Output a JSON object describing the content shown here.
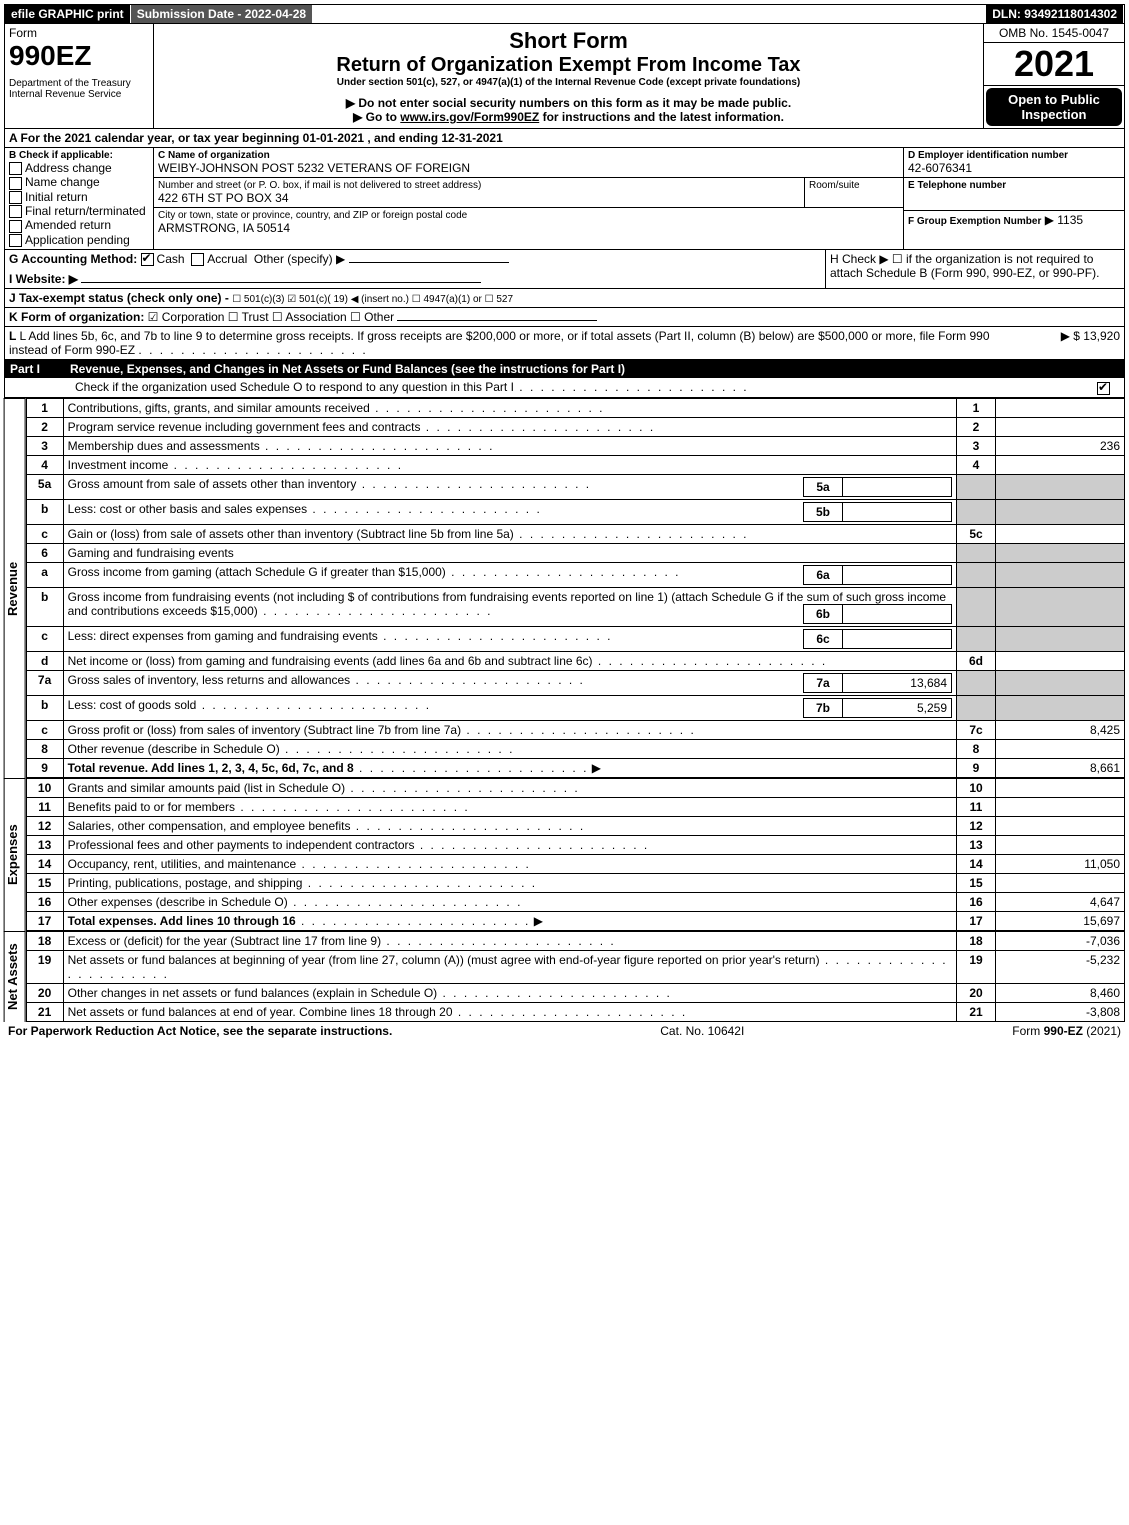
{
  "top": {
    "efile": "efile GRAPHIC print",
    "submission": "Submission Date - 2022-04-28",
    "dln": "DLN: 93492118014302"
  },
  "header": {
    "form_word": "Form",
    "form_num": "990EZ",
    "dept": "Department of the Treasury\nInternal Revenue Service",
    "short_form": "Short Form",
    "title": "Return of Organization Exempt From Income Tax",
    "subtitle": "Under section 501(c), 527, or 4947(a)(1) of the Internal Revenue Code (except private foundations)",
    "note1": "▶ Do not enter social security numbers on this form as it may be made public.",
    "note2": "▶ Go to www.irs.gov/Form990EZ for instructions and the latest information.",
    "omb": "OMB No. 1545-0047",
    "year": "2021",
    "inspection": "Open to Public Inspection"
  },
  "secA": "A  For the 2021 calendar year, or tax year beginning 01-01-2021 , and ending 12-31-2021",
  "secB": {
    "label": "B  Check if applicable:",
    "items": [
      "Address change",
      "Name change",
      "Initial return",
      "Final return/terminated",
      "Amended return",
      "Application pending"
    ]
  },
  "secC": {
    "name_lbl": "C Name of organization",
    "name": "WEIBY-JOHNSON POST 5232 VETERANS OF FOREIGN",
    "street_lbl": "Number and street (or P. O. box, if mail is not delivered to street address)",
    "street": "422 6TH ST PO BOX 34",
    "room_lbl": "Room/suite",
    "city_lbl": "City or town, state or province, country, and ZIP or foreign postal code",
    "city": "ARMSTRONG, IA  50514"
  },
  "secD": {
    "label": "D Employer identification number",
    "value": "42-6076341"
  },
  "secE": {
    "label": "E Telephone number"
  },
  "secF": {
    "label": "F Group Exemption Number",
    "value": "▶ 1135"
  },
  "secG": {
    "label": "G Accounting Method:",
    "cash": "Cash",
    "accrual": "Accrual",
    "other": "Other (specify) ▶"
  },
  "secH": {
    "text": "H  Check ▶  ☐  if the organization is not required to attach Schedule B (Form 990, 990-EZ, or 990-PF)."
  },
  "secI": {
    "label": "I Website: ▶"
  },
  "secJ": {
    "label": "J Tax-exempt status (check only one) -",
    "opts": "☐ 501(c)(3)  ☑ 501(c)( 19) ◀ (insert no.)  ☐ 4947(a)(1) or  ☐ 527"
  },
  "secK": {
    "label": "K Form of organization:",
    "opts": "☑ Corporation  ☐ Trust  ☐ Association  ☐ Other"
  },
  "secL": {
    "text": "L Add lines 5b, 6c, and 7b to line 9 to determine gross receipts. If gross receipts are $200,000 or more, or if total assets (Part II, column (B) below) are $500,000 or more, file Form 990 instead of Form 990-EZ",
    "amount": "▶ $ 13,920"
  },
  "part1": {
    "label": "Part I",
    "title": "Revenue, Expenses, and Changes in Net Assets or Fund Balances (see the instructions for Part I)",
    "check_line": "Check if the organization used Schedule O to respond to any question in this Part I"
  },
  "sections": {
    "revenue_label": "Revenue",
    "expenses_label": "Expenses",
    "netassets_label": "Net Assets"
  },
  "lines": {
    "l1": {
      "n": "1",
      "t": "Contributions, gifts, grants, and similar amounts received",
      "c": "1",
      "v": ""
    },
    "l2": {
      "n": "2",
      "t": "Program service revenue including government fees and contracts",
      "c": "2",
      "v": ""
    },
    "l3": {
      "n": "3",
      "t": "Membership dues and assessments",
      "c": "3",
      "v": "236"
    },
    "l4": {
      "n": "4",
      "t": "Investment income",
      "c": "4",
      "v": ""
    },
    "l5a": {
      "n": "5a",
      "t": "Gross amount from sale of assets other than inventory",
      "sc": "5a",
      "sv": ""
    },
    "l5b": {
      "n": "b",
      "t": "Less: cost or other basis and sales expenses",
      "sc": "5b",
      "sv": ""
    },
    "l5c": {
      "n": "c",
      "t": "Gain or (loss) from sale of assets other than inventory (Subtract line 5b from line 5a)",
      "c": "5c",
      "v": ""
    },
    "l6": {
      "n": "6",
      "t": "Gaming and fundraising events"
    },
    "l6a": {
      "n": "a",
      "t": "Gross income from gaming (attach Schedule G if greater than $15,000)",
      "sc": "6a",
      "sv": ""
    },
    "l6b": {
      "n": "b",
      "t": "Gross income from fundraising events (not including $                      of contributions from fundraising events reported on line 1) (attach Schedule G if the sum of such gross income and contributions exceeds $15,000)",
      "sc": "6b",
      "sv": ""
    },
    "l6c": {
      "n": "c",
      "t": "Less: direct expenses from gaming and fundraising events",
      "sc": "6c",
      "sv": ""
    },
    "l6d": {
      "n": "d",
      "t": "Net income or (loss) from gaming and fundraising events (add lines 6a and 6b and subtract line 6c)",
      "c": "6d",
      "v": ""
    },
    "l7a": {
      "n": "7a",
      "t": "Gross sales of inventory, less returns and allowances",
      "sc": "7a",
      "sv": "13,684"
    },
    "l7b": {
      "n": "b",
      "t": "Less: cost of goods sold",
      "sc": "7b",
      "sv": "5,259"
    },
    "l7c": {
      "n": "c",
      "t": "Gross profit or (loss) from sales of inventory (Subtract line 7b from line 7a)",
      "c": "7c",
      "v": "8,425"
    },
    "l8": {
      "n": "8",
      "t": "Other revenue (describe in Schedule O)",
      "c": "8",
      "v": ""
    },
    "l9": {
      "n": "9",
      "t": "Total revenue. Add lines 1, 2, 3, 4, 5c, 6d, 7c, and 8",
      "c": "9",
      "v": "8,661",
      "bold": true,
      "arrow": true
    },
    "l10": {
      "n": "10",
      "t": "Grants and similar amounts paid (list in Schedule O)",
      "c": "10",
      "v": ""
    },
    "l11": {
      "n": "11",
      "t": "Benefits paid to or for members",
      "c": "11",
      "v": ""
    },
    "l12": {
      "n": "12",
      "t": "Salaries, other compensation, and employee benefits",
      "c": "12",
      "v": ""
    },
    "l13": {
      "n": "13",
      "t": "Professional fees and other payments to independent contractors",
      "c": "13",
      "v": ""
    },
    "l14": {
      "n": "14",
      "t": "Occupancy, rent, utilities, and maintenance",
      "c": "14",
      "v": "11,050"
    },
    "l15": {
      "n": "15",
      "t": "Printing, publications, postage, and shipping",
      "c": "15",
      "v": ""
    },
    "l16": {
      "n": "16",
      "t": "Other expenses (describe in Schedule O)",
      "c": "16",
      "v": "4,647"
    },
    "l17": {
      "n": "17",
      "t": "Total expenses. Add lines 10 through 16",
      "c": "17",
      "v": "15,697",
      "bold": true,
      "arrow": true
    },
    "l18": {
      "n": "18",
      "t": "Excess or (deficit) for the year (Subtract line 17 from line 9)",
      "c": "18",
      "v": "-7,036"
    },
    "l19": {
      "n": "19",
      "t": "Net assets or fund balances at beginning of year (from line 27, column (A)) (must agree with end-of-year figure reported on prior year's return)",
      "c": "19",
      "v": "-5,232"
    },
    "l20": {
      "n": "20",
      "t": "Other changes in net assets or fund balances (explain in Schedule O)",
      "c": "20",
      "v": "8,460"
    },
    "l21": {
      "n": "21",
      "t": "Net assets or fund balances at end of year. Combine lines 18 through 20",
      "c": "21",
      "v": "-3,808"
    }
  },
  "footer": {
    "left": "For Paperwork Reduction Act Notice, see the separate instructions.",
    "mid": "Cat. No. 10642I",
    "right": "Form 990-EZ (2021)"
  },
  "colors": {
    "black": "#000000",
    "grey": "#555555",
    "lightgrey": "#cccccc"
  }
}
